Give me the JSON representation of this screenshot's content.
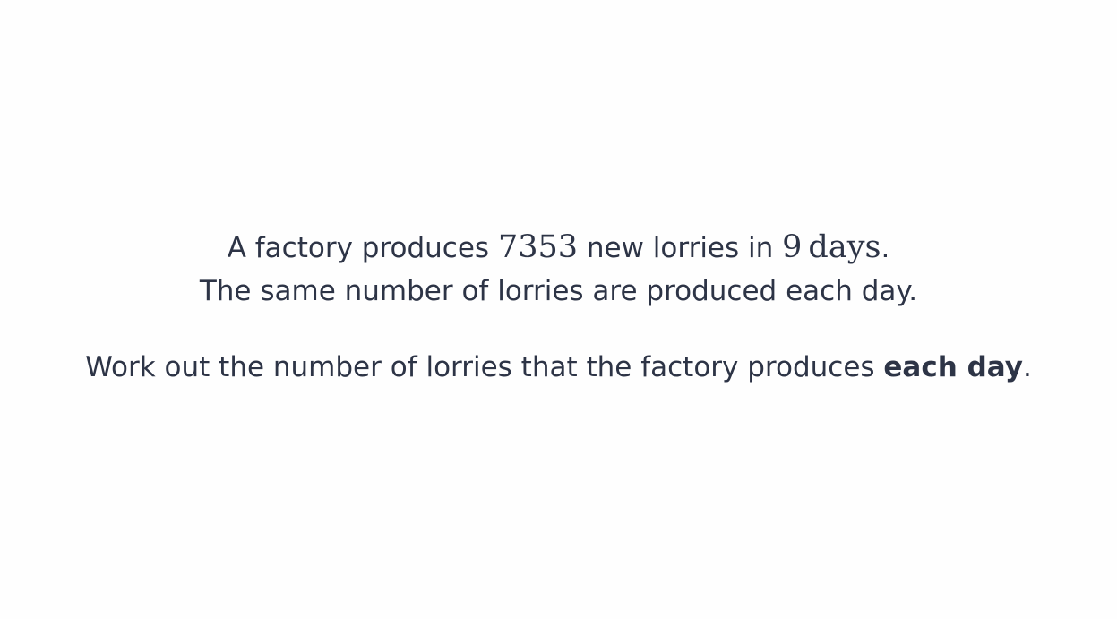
{
  "question": {
    "line1": {
      "pre": "A factory produces ",
      "quantity": "7353",
      "mid": " new lorries in ",
      "days_number": "9",
      "days_unit": "days",
      "end": "."
    },
    "line2": "The same number of lorries are produced each day.",
    "line3": {
      "pre": "Work out the number of lorries that the factory produces ",
      "emphasis": "each day",
      "end": "."
    }
  }
}
